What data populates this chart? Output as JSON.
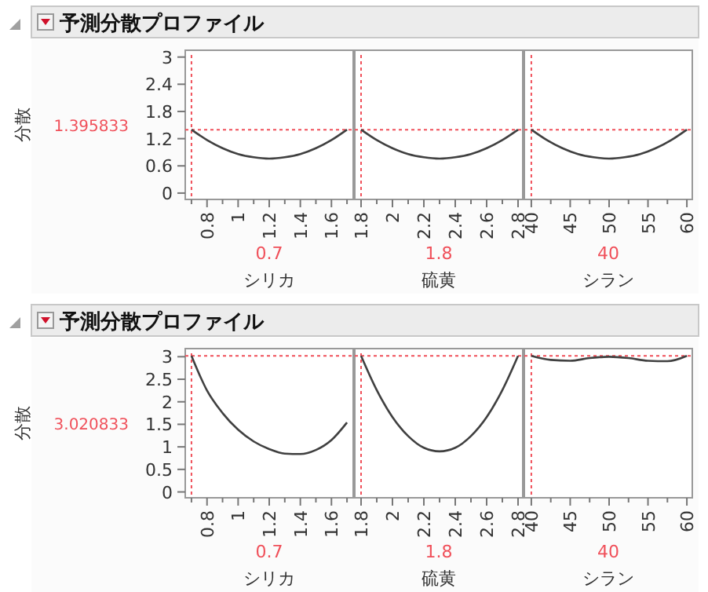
{
  "chart_data": [
    {
      "type": "line",
      "title": "予測分散プロファイル",
      "ylabel": "分散",
      "xlabel": "シリカ",
      "x": [
        0.7,
        0.8,
        0.9,
        1.0,
        1.1,
        1.2,
        1.3,
        1.4,
        1.5,
        1.6,
        1.7
      ],
      "series": [
        {
          "color": "#404040",
          "values": [
            1.4,
            1.17,
            0.99,
            0.86,
            0.79,
            0.76,
            0.79,
            0.86,
            0.99,
            1.17,
            1.4
          ]
        }
      ],
      "xlim": [
        0.66,
        1.74
      ],
      "xticks": [
        {
          "value": 0.7,
          "label": null
        },
        0.8,
        {
          "value": 0.9,
          "label": null
        },
        1,
        {
          "value": 1.1,
          "label": null
        },
        1.2,
        {
          "value": 1.3,
          "label": null
        },
        1.4,
        {
          "value": 1.5,
          "label": null
        },
        1.6,
        {
          "value": 1.7,
          "label": null
        }
      ],
      "ylim": [
        -0.14,
        3.15
      ],
      "yticks": [
        0,
        0.6,
        1.2,
        1.8,
        2.4,
        3
      ],
      "ref_lines": [
        {
          "axis": "x",
          "value": 0.7,
          "label": "0.7",
          "color": "#f0505a",
          "line_style": "dotted"
        },
        {
          "axis": "y",
          "value": 1.395833,
          "label": "1.395833",
          "color": "#f0505a",
          "line_style": "dotted"
        }
      ]
    },
    {
      "type": "line",
      "xlabel": "硫黄",
      "x": [
        1.8,
        1.9,
        2.0,
        2.1,
        2.2,
        2.3,
        2.4,
        2.5,
        2.6,
        2.7,
        2.8
      ],
      "series": [
        {
          "color": "#404040",
          "values": [
            1.4,
            1.17,
            0.99,
            0.86,
            0.79,
            0.76,
            0.79,
            0.86,
            0.99,
            1.17,
            1.4
          ]
        }
      ],
      "xlim": [
        1.76,
        2.83
      ],
      "xticks": [
        1.8,
        {
          "value": 1.9,
          "label": null
        },
        2,
        {
          "value": 2.1,
          "label": null
        },
        2.2,
        {
          "value": 2.3,
          "label": null
        },
        2.4,
        {
          "value": 2.5,
          "label": null
        },
        2.6,
        {
          "value": 2.7,
          "label": null
        },
        2.8
      ],
      "ylim": [
        -0.14,
        3.15
      ],
      "tick_labels": "x",
      "ref_lines": [
        {
          "axis": "x",
          "value": 1.8,
          "label": "1.8",
          "color": "#f0505a",
          "line_style": "dotted"
        },
        {
          "axis": "y",
          "value": 1.395833,
          "color": "#f0505a",
          "line_style": "dotted"
        }
      ]
    },
    {
      "type": "line",
      "xlabel": "シラン",
      "x": [
        40,
        42,
        44,
        46,
        48,
        50,
        52,
        54,
        56,
        58,
        60
      ],
      "series": [
        {
          "color": "#404040",
          "values": [
            1.4,
            1.17,
            0.99,
            0.86,
            0.79,
            0.76,
            0.79,
            0.86,
            0.99,
            1.17,
            1.4
          ]
        }
      ],
      "xlim": [
        39.1,
        60.7
      ],
      "xticks": [
        40,
        {
          "value": 42.5,
          "label": null
        },
        45,
        {
          "value": 47.5,
          "label": null
        },
        50,
        {
          "value": 52.5,
          "label": null
        },
        55,
        {
          "value": 57.5,
          "label": null
        },
        60
      ],
      "ylim": [
        -0.14,
        3.15
      ],
      "tick_labels": "x",
      "ref_lines": [
        {
          "axis": "x",
          "value": 40,
          "label": "40",
          "color": "#f0505a",
          "line_style": "dotted"
        },
        {
          "axis": "y",
          "value": 1.395833,
          "color": "#f0505a",
          "line_style": "dotted"
        }
      ]
    },
    {
      "type": "line",
      "title": "予測分散プロファイル",
      "ylabel": "分散",
      "xlabel": "シリカ",
      "x": [
        0.7,
        0.8,
        0.9,
        1.0,
        1.1,
        1.2,
        1.3,
        1.4,
        1.5,
        1.6,
        1.7
      ],
      "series": [
        {
          "color": "#404040",
          "values": [
            3.02,
            2.25,
            1.75,
            1.38,
            1.12,
            0.95,
            0.85,
            0.84,
            0.93,
            1.15,
            1.54
          ]
        }
      ],
      "xlim": [
        0.66,
        1.74
      ],
      "xticks": [
        {
          "value": 0.7,
          "label": null
        },
        0.8,
        {
          "value": 0.9,
          "label": null
        },
        1,
        {
          "value": 1.1,
          "label": null
        },
        1.2,
        {
          "value": 1.3,
          "label": null
        },
        1.4,
        {
          "value": 1.5,
          "label": null
        },
        1.6,
        {
          "value": 1.7,
          "label": null
        }
      ],
      "ylim": [
        -0.13,
        3.18
      ],
      "yticks": [
        0,
        0.5,
        1,
        1.5,
        2,
        2.5,
        3
      ],
      "ref_lines": [
        {
          "axis": "x",
          "value": 0.7,
          "label": "0.7",
          "color": "#f0505a",
          "line_style": "dotted"
        },
        {
          "axis": "y",
          "value": 3.020833,
          "label": "3.020833",
          "color": "#f0505a",
          "line_style": "dotted"
        }
      ]
    },
    {
      "type": "line",
      "xlabel": "硫黄",
      "x": [
        1.8,
        1.9,
        2.0,
        2.1,
        2.2,
        2.3,
        2.4,
        2.5,
        2.6,
        2.7,
        2.8
      ],
      "series": [
        {
          "color": "#404040",
          "values": [
            3.02,
            2.26,
            1.66,
            1.24,
            0.98,
            0.9,
            0.98,
            1.24,
            1.66,
            2.26,
            3.02
          ]
        }
      ],
      "xlim": [
        1.76,
        2.83
      ],
      "xticks": [
        1.8,
        {
          "value": 1.9,
          "label": null
        },
        2,
        {
          "value": 2.1,
          "label": null
        },
        2.2,
        {
          "value": 2.3,
          "label": null
        },
        2.4,
        {
          "value": 2.5,
          "label": null
        },
        2.6,
        {
          "value": 2.7,
          "label": null
        },
        2.8
      ],
      "ylim": [
        -0.13,
        3.18
      ],
      "tick_labels": "x",
      "ref_lines": [
        {
          "axis": "x",
          "value": 1.8,
          "label": "1.8",
          "color": "#f0505a",
          "line_style": "dotted"
        },
        {
          "axis": "y",
          "value": 3.020833,
          "color": "#f0505a",
          "line_style": "dotted"
        }
      ]
    },
    {
      "type": "line",
      "xlabel": "シラン",
      "x": [
        40,
        42.5,
        45,
        47.5,
        50,
        52.5,
        55,
        57.5,
        60
      ],
      "series": [
        {
          "color": "#404040",
          "values": [
            3.02,
            2.93,
            2.91,
            2.97,
            3.0,
            2.97,
            2.91,
            2.9,
            3.02
          ]
        }
      ],
      "xlim": [
        39.1,
        60.7
      ],
      "xticks": [
        40,
        {
          "value": 42.5,
          "label": null
        },
        45,
        {
          "value": 47.5,
          "label": null
        },
        50,
        {
          "value": 52.5,
          "label": null
        },
        55,
        {
          "value": 57.5,
          "label": null
        },
        60
      ],
      "ylim": [
        -0.13,
        3.18
      ],
      "tick_labels": "x",
      "ref_lines": [
        {
          "axis": "x",
          "value": 40,
          "label": "40",
          "color": "#f0505a",
          "line_style": "dotted"
        },
        {
          "axis": "y",
          "value": 3.020833,
          "color": "#f0505a",
          "line_style": "dotted"
        }
      ]
    }
  ]
}
